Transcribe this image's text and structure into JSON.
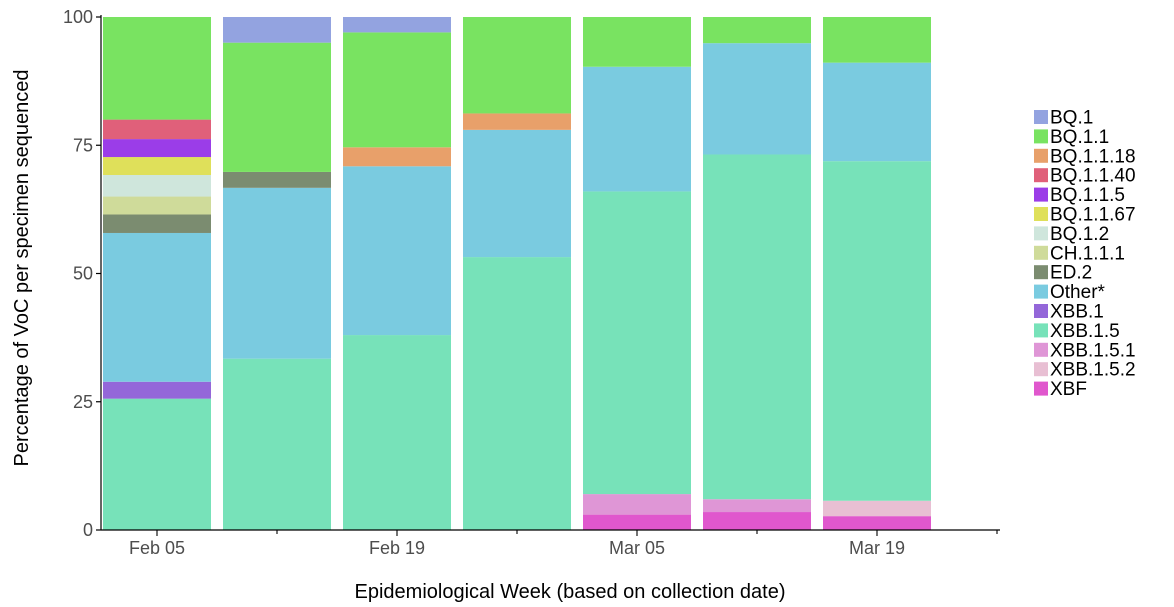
{
  "chart_data": {
    "type": "bar",
    "stacked": true,
    "xlabel": "Epidemiological Week (based on collection date)",
    "ylabel": "Percentage of VoC per specimen sequenced",
    "ylim": [
      0,
      100
    ],
    "yticks": [
      0,
      25,
      50,
      75,
      100
    ],
    "x_tick_labels": [
      "Feb 05",
      "Feb 19",
      "Mar 05",
      "Mar 19"
    ],
    "grid": false,
    "legend_position": "right",
    "weeks": 7,
    "series": [
      {
        "name": "BQ.1",
        "color": "#93a3e0",
        "values": [
          0,
          5,
          3,
          0,
          0,
          0,
          0
        ]
      },
      {
        "name": "BQ.1.1",
        "color": "#79e361",
        "values": [
          20,
          25.2,
          22.4,
          18.8,
          9.7,
          5.1,
          8.9
        ]
      },
      {
        "name": "BQ.1.1.18",
        "color": "#e8a06a",
        "values": [
          0,
          0,
          3.7,
          3.2,
          0,
          0,
          0
        ]
      },
      {
        "name": "BQ.1.1.40",
        "color": "#e0607a",
        "values": [
          3.8,
          0,
          0,
          0,
          0,
          0,
          0
        ]
      },
      {
        "name": "BQ.1.1.5",
        "color": "#9b3de8",
        "values": [
          3.5,
          0,
          0,
          0,
          0,
          0,
          0
        ]
      },
      {
        "name": "BQ.1.1.67",
        "color": "#dfe05a",
        "values": [
          3.5,
          0,
          0,
          0,
          0,
          0,
          0
        ]
      },
      {
        "name": "BQ.1.2",
        "color": "#cfe6dc",
        "values": [
          4.2,
          0,
          0,
          0,
          0,
          0,
          0
        ]
      },
      {
        "name": "CH.1.1.1",
        "color": "#cfdb9a",
        "values": [
          3.5,
          0,
          0,
          0,
          0,
          0,
          0
        ]
      },
      {
        "name": "ED.2",
        "color": "#7b8c70",
        "values": [
          3.6,
          3.1,
          0,
          0,
          0,
          0,
          0
        ]
      },
      {
        "name": "Other*",
        "color": "#7acbe0",
        "values": [
          29,
          33.3,
          32.9,
          24.8,
          24.3,
          21.7,
          19.2
        ]
      },
      {
        "name": "XBB.1",
        "color": "#9467d9",
        "values": [
          3.3,
          0,
          0,
          0,
          0,
          0,
          0
        ]
      },
      {
        "name": "XBB.1.5",
        "color": "#77e2b9",
        "values": [
          25.6,
          33.4,
          38,
          53.2,
          59,
          67.2,
          66.2
        ]
      },
      {
        "name": "XBB.1.5.1",
        "color": "#df96d6",
        "values": [
          0,
          0,
          0,
          0,
          4,
          2.5,
          0
        ]
      },
      {
        "name": "XBB.1.5.2",
        "color": "#e8bfd3",
        "values": [
          0,
          0,
          0,
          0,
          0,
          0,
          3
        ]
      },
      {
        "name": "XBF",
        "color": "#e057cd",
        "values": [
          0,
          0,
          0,
          0,
          3,
          3.5,
          2.7
        ]
      }
    ]
  }
}
